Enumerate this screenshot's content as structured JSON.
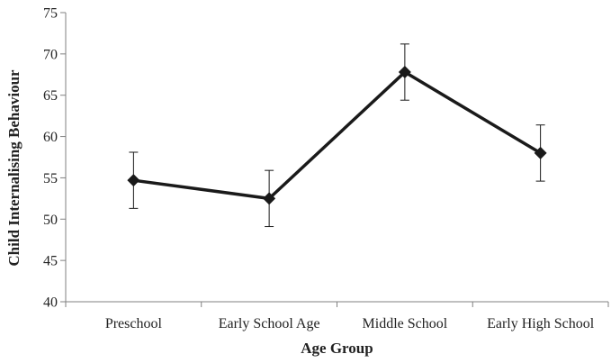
{
  "chart_data": {
    "type": "line",
    "title": "",
    "xlabel": "Age Group",
    "ylabel": "Child Internalising Behaviour",
    "categories": [
      "Preschool",
      "Early School Age",
      "Middle School",
      "Early High School"
    ],
    "series": [
      {
        "values": [
          54.7,
          52.5,
          67.8,
          58.0
        ],
        "error": [
          3.4,
          3.4,
          3.4,
          3.4
        ]
      }
    ],
    "ylim": [
      40,
      75
    ],
    "yticks": [
      40,
      45,
      50,
      55,
      60,
      65,
      70,
      75
    ],
    "ytick_labels": [
      "40",
      "45",
      "50",
      "55",
      "60",
      "65",
      "70",
      "75"
    ],
    "grid": false,
    "legend": "none",
    "colors": {
      "line": "#1a1a1a",
      "axis": "#808080",
      "marker": "#1a1a1a"
    }
  }
}
